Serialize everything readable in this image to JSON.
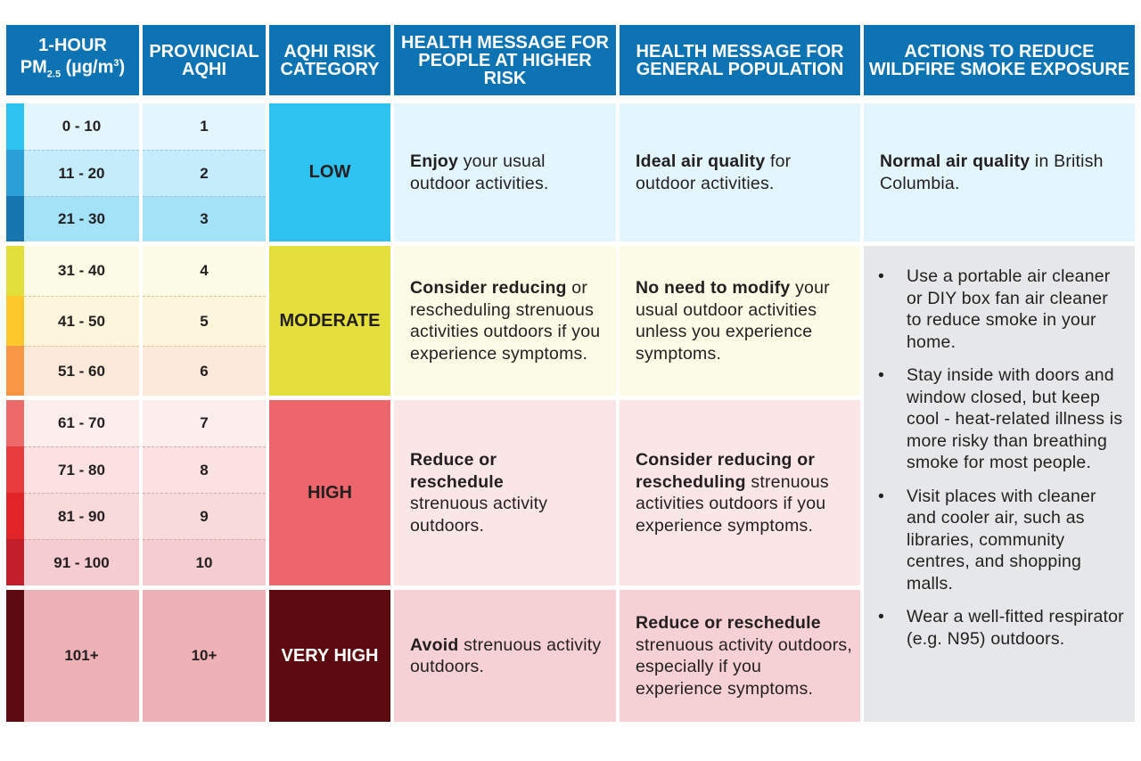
{
  "headers": {
    "pm_line1": "1-HOUR",
    "pm_line2_pre": "PM",
    "pm_sub": "2.5",
    "pm_unit_pre": " (µg/m",
    "pm_sup": "3",
    "pm_unit_post": ")",
    "aqhi": "PROVINCIAL AQHI",
    "risk": "AQHI RISK CATEGORY",
    "higher_risk": "HEALTH MESSAGE FOR PEOPLE AT HIGHER RISK",
    "general": "HEALTH MESSAGE FOR GENERAL POPULATION",
    "actions": "ACTIONS TO REDUCE WILDFIRE SMOKE EXPOSURE"
  },
  "rows": [
    {
      "pm": "0 - 10",
      "aqhi": "1",
      "swatch": "#2ec2f0"
    },
    {
      "pm": "11 - 20",
      "aqhi": "2",
      "swatch": "#2a9fd8"
    },
    {
      "pm": "21 - 30",
      "aqhi": "3",
      "swatch": "#1674ae"
    },
    {
      "pm": "31 - 40",
      "aqhi": "4",
      "swatch": "#e3df3a"
    },
    {
      "pm": "41 - 50",
      "aqhi": "5",
      "swatch": "#fcc82c"
    },
    {
      "pm": "51 - 60",
      "aqhi": "6",
      "swatch": "#f79746"
    },
    {
      "pm": "61 - 70",
      "aqhi": "7",
      "swatch": "#ee6a6a"
    },
    {
      "pm": "71 - 80",
      "aqhi": "8",
      "swatch": "#e83d3d"
    },
    {
      "pm": "81 - 90",
      "aqhi": "9",
      "swatch": "#e02428"
    },
    {
      "pm": "91 - 100",
      "aqhi": "10",
      "swatch": "#c31e2c"
    },
    {
      "pm": "101+",
      "aqhi": "10+",
      "swatch": "#5c0c10"
    }
  ],
  "categories": {
    "low": {
      "label": "LOW",
      "higher_bold": "Enjoy",
      "higher_rest": " your usual outdoor activities.",
      "general_bold": "Ideal air quality",
      "general_rest": " for outdoor activities.",
      "action_bold": "Normal air quality",
      "action_rest": " in British Columbia."
    },
    "moderate": {
      "label": "MODERATE",
      "higher_bold": "Consider reducing",
      "higher_rest": " or rescheduling strenuous activities outdoors if you experience symptoms.",
      "general_bold": "No need to modify",
      "general_rest": " your usual outdoor activities unless you experience symptoms."
    },
    "high": {
      "label": "HIGH",
      "higher_bold": "Reduce or reschedule",
      "higher_rest": " strenuous activity outdoors.",
      "general_bold": "Consider reducing or rescheduling",
      "general_rest": " strenuous activities outdoors if you experience symptoms."
    },
    "very_high": {
      "label": "VERY HIGH",
      "higher_bold": "Avoid",
      "higher_rest": " strenuous activity outdoors.",
      "general_bold": "Reduce or reschedule",
      "general_rest": " strenuous activity outdoors, especially if you experience symptoms."
    }
  },
  "actions": [
    "Use a portable air cleaner or DIY box fan air cleaner to reduce smoke in your home.",
    "Stay inside with doors and window closed, but keep cool - heat-related illness is more risky than breathing smoke for most people.",
    "Visit places with cleaner and cooler air, such as libraries, community centres, and shopping malls.",
    "Wear a well-fitted respirator (e.g. N95) outdoors."
  ]
}
